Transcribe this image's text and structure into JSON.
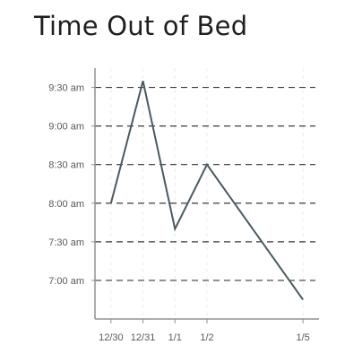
{
  "header": {
    "title": "Time Out of Bed"
  },
  "chart_data": {
    "type": "line",
    "title": "Time Out of Bed",
    "xlabel": "",
    "ylabel": "",
    "x_is_date": true,
    "x": [
      "12/30",
      "12/31",
      "1/1",
      "1/2",
      "1/5"
    ],
    "x_tick_labels": [
      "12/30",
      "12/31",
      "1/1",
      "1/2",
      "1/5"
    ],
    "x_day_index": [
      0,
      1,
      2,
      3,
      6
    ],
    "series": [
      {
        "values": [
          "8:00 am",
          "9:35 am",
          "7:40 am",
          "8:30 am",
          "6:45 am"
        ],
        "values_minutes": [
          480,
          575,
          460,
          510,
          405
        ]
      }
    ],
    "y_ticks": [
      "7:00 am",
      "7:30 am",
      "8:00 am",
      "8:30 am",
      "9:00 am",
      "9:30 am"
    ],
    "y_ticks_minutes": [
      420,
      450,
      480,
      510,
      540,
      570
    ],
    "ylim_minutes": [
      390,
      585
    ],
    "xlim_days": [
      -0.5,
      6.5
    ],
    "grid": {
      "horizontal": "dashed",
      "vertical": "faint"
    },
    "colors": {
      "line": "#4a5a62",
      "axis": "#8c9296",
      "grid": "#3a3a3a",
      "vgrid": "#ececec",
      "text": "#555a5e",
      "title": "#1f1f1f"
    }
  }
}
